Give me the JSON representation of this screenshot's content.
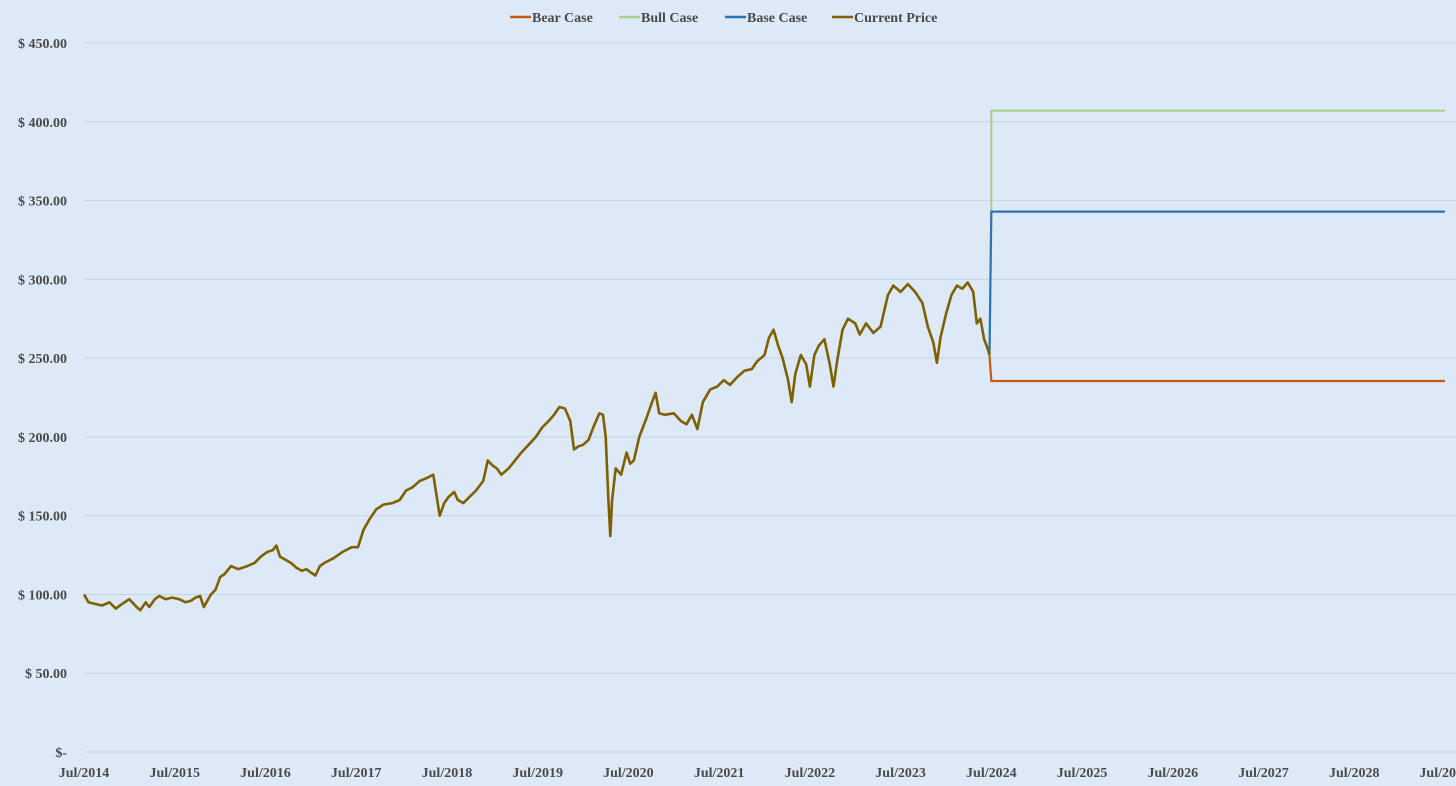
{
  "chart_data": {
    "type": "line",
    "title": "",
    "xlabel": "",
    "ylabel": "",
    "ylim": [
      0,
      450
    ],
    "y_ticks": [
      {
        "value": 0,
        "label": "$-"
      },
      {
        "value": 50,
        "label": "$ 50.00"
      },
      {
        "value": 100,
        "label": "$ 100.00"
      },
      {
        "value": 150,
        "label": "$ 150.00"
      },
      {
        "value": 200,
        "label": "$ 200.00"
      },
      {
        "value": 250,
        "label": "$ 250.00"
      },
      {
        "value": 300,
        "label": "$ 300.00"
      },
      {
        "value": 350,
        "label": "$ 350.00"
      },
      {
        "value": 400,
        "label": "$ 400.00"
      },
      {
        "value": 450,
        "label": "$ 450.00"
      }
    ],
    "x_range": [
      2014.5,
      2029.5
    ],
    "x_ticks": [
      {
        "value": 2014.5,
        "label": "Jul/2014"
      },
      {
        "value": 2015.5,
        "label": "Jul/2015"
      },
      {
        "value": 2016.5,
        "label": "Jul/2016"
      },
      {
        "value": 2017.5,
        "label": "Jul/2017"
      },
      {
        "value": 2018.5,
        "label": "Jul/2018"
      },
      {
        "value": 2019.5,
        "label": "Jul/2019"
      },
      {
        "value": 2020.5,
        "label": "Jul/2020"
      },
      {
        "value": 2021.5,
        "label": "Jul/2021"
      },
      {
        "value": 2022.5,
        "label": "Jul/2022"
      },
      {
        "value": 2023.5,
        "label": "Jul/2023"
      },
      {
        "value": 2024.5,
        "label": "Jul/2024"
      },
      {
        "value": 2025.5,
        "label": "Jul/2025"
      },
      {
        "value": 2026.5,
        "label": "Jul/2026"
      },
      {
        "value": 2027.5,
        "label": "Jul/2027"
      },
      {
        "value": 2028.5,
        "label": "Jul/2028"
      },
      {
        "value": 2029.5,
        "label": "Jul/20"
      }
    ],
    "grid": true,
    "legend_position": "top-center",
    "series": [
      {
        "name": "Bear Case",
        "color": "#c55a11",
        "points": [
          [
            2024.48,
            252
          ],
          [
            2024.5,
            235.5
          ],
          [
            2029.5,
            235.5
          ]
        ]
      },
      {
        "name": "Bull Case",
        "color": "#a9d18e",
        "points": [
          [
            2024.48,
            252
          ],
          [
            2024.5,
            342
          ],
          [
            2024.5,
            407
          ],
          [
            2029.5,
            407
          ]
        ]
      },
      {
        "name": "Base Case",
        "color": "#2e75b6",
        "points": [
          [
            2024.48,
            252
          ],
          [
            2024.5,
            343
          ],
          [
            2029.5,
            343
          ]
        ]
      },
      {
        "name": "Current Price",
        "color": "#7f6000",
        "points": [
          [
            2014.5,
            100
          ],
          [
            2014.55,
            95
          ],
          [
            2014.62,
            94
          ],
          [
            2014.7,
            93
          ],
          [
            2014.78,
            95
          ],
          [
            2014.85,
            91
          ],
          [
            2014.92,
            94
          ],
          [
            2015.0,
            97
          ],
          [
            2015.08,
            92
          ],
          [
            2015.12,
            90
          ],
          [
            2015.18,
            95
          ],
          [
            2015.22,
            92
          ],
          [
            2015.28,
            97
          ],
          [
            2015.33,
            99
          ],
          [
            2015.4,
            97
          ],
          [
            2015.47,
            98
          ],
          [
            2015.55,
            97
          ],
          [
            2015.62,
            95
          ],
          [
            2015.68,
            96
          ],
          [
            2015.73,
            98
          ],
          [
            2015.78,
            99
          ],
          [
            2015.82,
            92
          ],
          [
            2015.86,
            96
          ],
          [
            2015.9,
            100
          ],
          [
            2015.95,
            103
          ],
          [
            2016.0,
            111
          ],
          [
            2016.05,
            113
          ],
          [
            2016.12,
            118
          ],
          [
            2016.2,
            116
          ],
          [
            2016.3,
            118
          ],
          [
            2016.38,
            120
          ],
          [
            2016.45,
            124
          ],
          [
            2016.52,
            127
          ],
          [
            2016.58,
            128
          ],
          [
            2016.62,
            131
          ],
          [
            2016.66,
            124
          ],
          [
            2016.72,
            122
          ],
          [
            2016.78,
            120
          ],
          [
            2016.84,
            117
          ],
          [
            2016.9,
            115
          ],
          [
            2016.95,
            116
          ],
          [
            2017.0,
            114
          ],
          [
            2017.05,
            112
          ],
          [
            2017.1,
            118
          ],
          [
            2017.15,
            120
          ],
          [
            2017.25,
            123
          ],
          [
            2017.35,
            127
          ],
          [
            2017.45,
            130
          ],
          [
            2017.52,
            130
          ],
          [
            2017.58,
            141
          ],
          [
            2017.65,
            148
          ],
          [
            2017.72,
            154
          ],
          [
            2017.8,
            157
          ],
          [
            2017.9,
            158
          ],
          [
            2017.98,
            160
          ],
          [
            2018.05,
            166
          ],
          [
            2018.12,
            168
          ],
          [
            2018.2,
            172
          ],
          [
            2018.28,
            174
          ],
          [
            2018.35,
            176
          ],
          [
            2018.38,
            165
          ],
          [
            2018.42,
            150
          ],
          [
            2018.47,
            158
          ],
          [
            2018.52,
            162
          ],
          [
            2018.58,
            165
          ],
          [
            2018.62,
            160
          ],
          [
            2018.68,
            158
          ],
          [
            2018.75,
            162
          ],
          [
            2018.82,
            166
          ],
          [
            2018.9,
            172
          ],
          [
            2018.95,
            185
          ],
          [
            2019.0,
            182
          ],
          [
            2019.05,
            180
          ],
          [
            2019.1,
            176
          ],
          [
            2019.18,
            180
          ],
          [
            2019.25,
            185
          ],
          [
            2019.32,
            190
          ],
          [
            2019.4,
            195
          ],
          [
            2019.48,
            200
          ],
          [
            2019.55,
            206
          ],
          [
            2019.62,
            210
          ],
          [
            2019.68,
            214
          ],
          [
            2019.74,
            219
          ],
          [
            2019.8,
            218
          ],
          [
            2019.86,
            210
          ],
          [
            2019.9,
            192
          ],
          [
            2019.95,
            194
          ],
          [
            2020.0,
            195
          ],
          [
            2020.06,
            198
          ],
          [
            2020.12,
            207
          ],
          [
            2020.18,
            215
          ],
          [
            2020.22,
            214
          ],
          [
            2020.25,
            200
          ],
          [
            2020.28,
            160
          ],
          [
            2020.3,
            137
          ],
          [
            2020.32,
            160
          ],
          [
            2020.36,
            180
          ],
          [
            2020.42,
            176
          ],
          [
            2020.48,
            190
          ],
          [
            2020.52,
            183
          ],
          [
            2020.56,
            185
          ],
          [
            2020.62,
            200
          ],
          [
            2020.7,
            212
          ],
          [
            2020.76,
            222
          ],
          [
            2020.8,
            228
          ],
          [
            2020.84,
            215
          ],
          [
            2020.9,
            214
          ],
          [
            2021.0,
            215
          ],
          [
            2021.08,
            210
          ],
          [
            2021.14,
            208
          ],
          [
            2021.2,
            214
          ],
          [
            2021.26,
            205
          ],
          [
            2021.32,
            222
          ],
          [
            2021.4,
            230
          ],
          [
            2021.48,
            232
          ],
          [
            2021.55,
            236
          ],
          [
            2021.62,
            233
          ],
          [
            2021.7,
            238
          ],
          [
            2021.78,
            242
          ],
          [
            2021.86,
            243
          ],
          [
            2021.92,
            248
          ],
          [
            2022.0,
            252
          ],
          [
            2022.05,
            263
          ],
          [
            2022.1,
            268
          ],
          [
            2022.15,
            258
          ],
          [
            2022.2,
            250
          ],
          [
            2022.26,
            236
          ],
          [
            2022.3,
            222
          ],
          [
            2022.34,
            240
          ],
          [
            2022.4,
            252
          ],
          [
            2022.46,
            246
          ],
          [
            2022.5,
            232
          ],
          [
            2022.55,
            252
          ],
          [
            2022.6,
            258
          ],
          [
            2022.66,
            262
          ],
          [
            2022.72,
            246
          ],
          [
            2022.76,
            232
          ],
          [
            2022.8,
            248
          ],
          [
            2022.86,
            268
          ],
          [
            2022.92,
            275
          ],
          [
            2023.0,
            272
          ],
          [
            2023.05,
            265
          ],
          [
            2023.12,
            272
          ],
          [
            2023.2,
            266
          ],
          [
            2023.28,
            270
          ],
          [
            2023.36,
            290
          ],
          [
            2023.42,
            296
          ],
          [
            2023.5,
            292
          ],
          [
            2023.58,
            297
          ],
          [
            2023.66,
            292
          ],
          [
            2023.74,
            285
          ],
          [
            2023.8,
            270
          ],
          [
            2023.86,
            260
          ],
          [
            2023.9,
            247
          ],
          [
            2023.94,
            263
          ],
          [
            2024.0,
            278
          ],
          [
            2024.06,
            290
          ],
          [
            2024.12,
            296
          ],
          [
            2024.18,
            294
          ],
          [
            2024.24,
            298
          ],
          [
            2024.3,
            292
          ],
          [
            2024.34,
            272
          ],
          [
            2024.38,
            275
          ],
          [
            2024.42,
            262
          ],
          [
            2024.46,
            256
          ],
          [
            2024.48,
            252
          ]
        ]
      }
    ]
  }
}
